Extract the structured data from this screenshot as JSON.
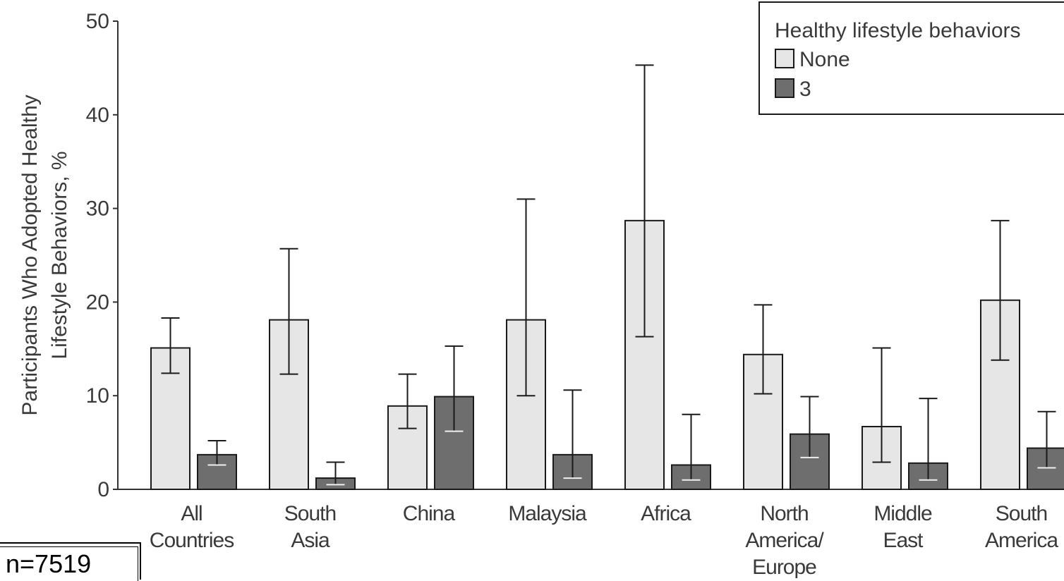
{
  "chart_data": {
    "type": "bar",
    "title": "",
    "xlabel": "",
    "ylabel": [
      "Participants Who Adopted Healthy",
      "Lifestyle Behaviors, %"
    ],
    "ylim": [
      0,
      50
    ],
    "yticks": [
      "0",
      "10",
      "20",
      "30",
      "40",
      "50"
    ],
    "categories": [
      [
        "All",
        "Countries"
      ],
      [
        "South",
        "Asia"
      ],
      [
        "China"
      ],
      [
        "Malaysia"
      ],
      [
        "Africa"
      ],
      [
        "North",
        "America/",
        "Europe"
      ],
      [
        "Middle",
        "East"
      ],
      [
        "South",
        "America"
      ]
    ],
    "legend": {
      "title": "Healthy lifestyle behaviors",
      "position": "top-right"
    },
    "series": [
      {
        "name": "None",
        "color": "#e6e6e6",
        "values": [
          15.1,
          18.1,
          8.9,
          18.1,
          28.7,
          14.4,
          6.7,
          20.2
        ],
        "err_low": [
          12.4,
          12.3,
          6.5,
          10.0,
          16.3,
          10.2,
          2.9,
          13.8
        ],
        "err_high": [
          18.3,
          25.7,
          12.3,
          31.0,
          45.3,
          19.7,
          15.1,
          28.7
        ]
      },
      {
        "name": "3",
        "color": "#6e6e6e",
        "values": [
          3.7,
          1.2,
          9.9,
          3.7,
          2.6,
          5.9,
          2.8,
          4.4
        ],
        "err_low": [
          2.6,
          0.5,
          6.2,
          1.2,
          1.0,
          3.4,
          1.0,
          2.3
        ],
        "err_high": [
          5.2,
          2.9,
          15.3,
          10.6,
          8.0,
          9.9,
          9.7,
          8.3
        ]
      }
    ],
    "annotation": "n=7519"
  }
}
